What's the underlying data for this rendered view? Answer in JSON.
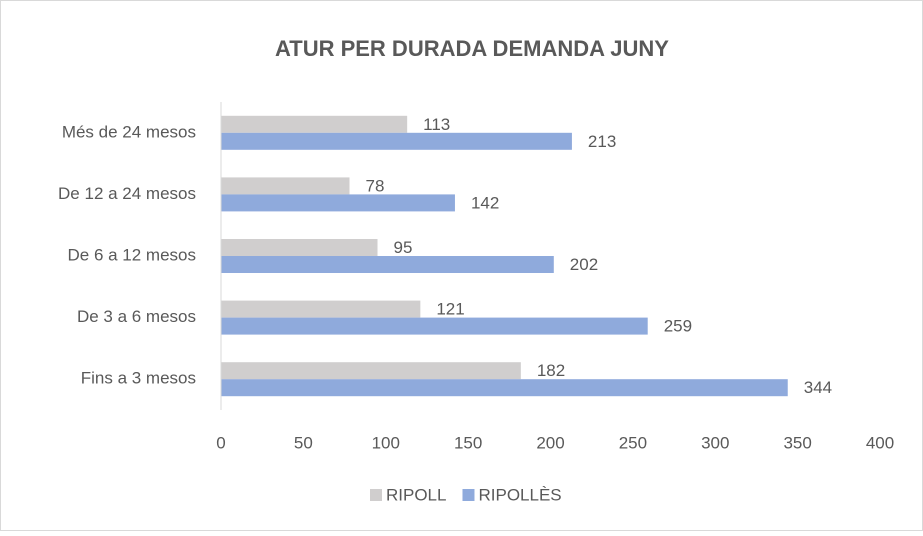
{
  "chart_data": {
    "type": "bar",
    "orientation": "horizontal",
    "title": "ATUR PER DURADA DEMANDA JUNY",
    "categories": [
      "Fins a 3 mesos",
      "De 3 a 6 mesos",
      "De 6 a 12 mesos",
      "De 12 a 24 mesos",
      "Més de 24 mesos"
    ],
    "series": [
      {
        "name": "RIPOLL",
        "color": "#d0cece",
        "values": [
          182,
          121,
          95,
          78,
          113
        ]
      },
      {
        "name": "RIPOLLÈS",
        "color": "#8faadc",
        "values": [
          344,
          259,
          202,
          142,
          213
        ]
      }
    ],
    "xlim": [
      0,
      400
    ],
    "xticks": [
      0,
      50,
      100,
      150,
      200,
      250,
      300,
      350,
      400
    ],
    "grid": false,
    "legend": "bottom"
  }
}
